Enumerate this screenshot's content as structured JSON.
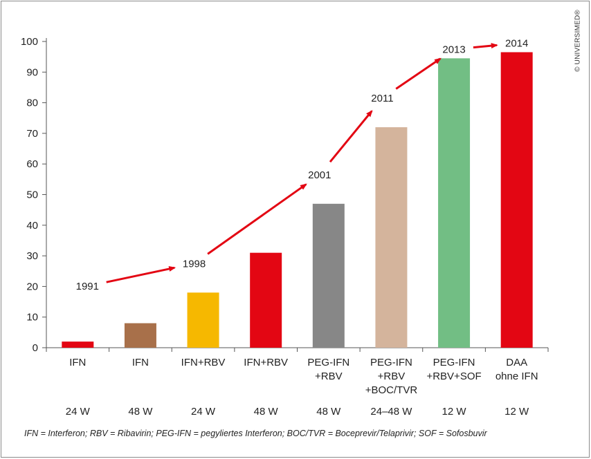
{
  "chart_data": {
    "type": "bar",
    "ylim": [
      0,
      100
    ],
    "yticks": [
      0,
      10,
      20,
      30,
      40,
      50,
      60,
      70,
      80,
      90,
      100
    ],
    "categories": [
      [
        "IFN"
      ],
      [
        "IFN"
      ],
      [
        "IFN+RBV"
      ],
      [
        "IFN+RBV"
      ],
      [
        "PEG-IFN",
        "+RBV"
      ],
      [
        "PEG-IFN",
        "+RBV",
        "+BOC/TVR"
      ],
      [
        "PEG-IFN",
        "+RBV+SOF"
      ],
      [
        "DAA",
        "ohne IFN"
      ]
    ],
    "durations": [
      "24 W",
      "48 W",
      "24 W",
      "48 W",
      "48 W",
      "24–48 W",
      "12 W",
      "12 W"
    ],
    "values": [
      2,
      8,
      18,
      31,
      47,
      72,
      94.5,
      96.5
    ],
    "bar_colors": [
      "#e30613",
      "#a8704a",
      "#f6b800",
      "#e30613",
      "#878787",
      "#d4b49c",
      "#72be84",
      "#e30613"
    ],
    "year_annotations": [
      {
        "label": "1991",
        "bar_index": 0
      },
      {
        "label": "1998",
        "bar_index": 2
      },
      {
        "label": "2001",
        "bar_index": 4
      },
      {
        "label": "2011",
        "bar_index": 5
      },
      {
        "label": "2013",
        "bar_index": 6
      },
      {
        "label": "2014",
        "bar_index": 7
      }
    ],
    "arrow_color": "#e30613",
    "grid": false
  },
  "copyright": "© UNIVERSIMED®",
  "footnote": "IFN = Interferon; RBV = Ribavirin; PEG-IFN = pegyliertes Interferon; BOC/TVR = Boceprevir/Telaprivir; SOF = Sofosbuvir"
}
